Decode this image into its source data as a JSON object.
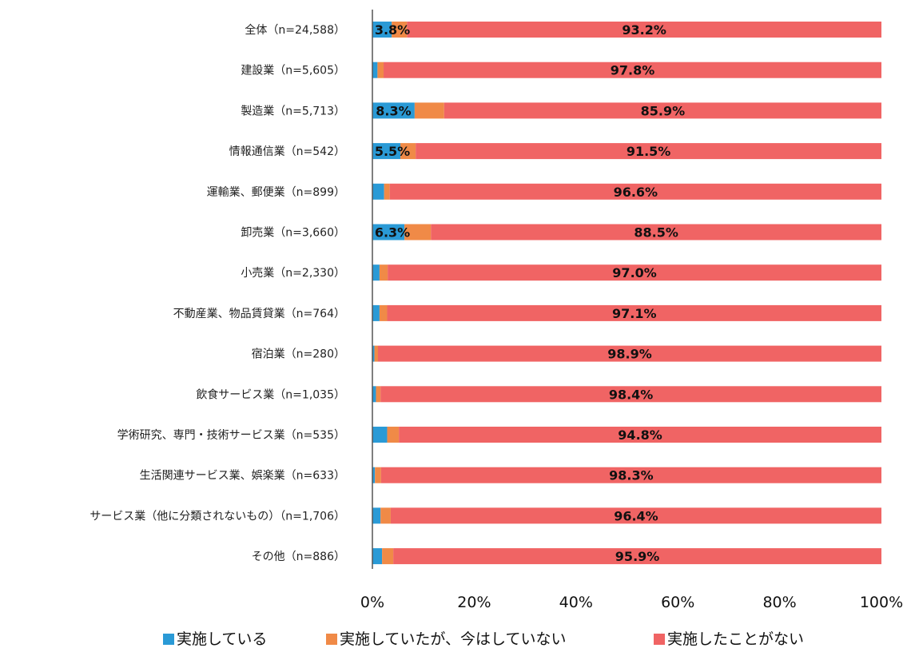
{
  "chart_data": {
    "type": "bar",
    "orientation": "horizontal",
    "stacked": "100%",
    "categories": [
      "全体（n=24,588）",
      "建設業（n=5,605）",
      "製造業（n=5,713）",
      "情報通信業（n=542）",
      "運輸業、郵便業（n=899）",
      "卸売業（n=3,660）",
      "小売業（n=2,330）",
      "不動産業、物品賃貸業（n=764）",
      "宿泊業（n=280）",
      "飲食サービス業（n=1,035）",
      "学術研究、専門・技術サービス業（n=535）",
      "生活関連サービス業、娯楽業（n=633）",
      "サービス業（他に分類されないもの）（n=1,706）",
      "その他（n=886）"
    ],
    "series": [
      {
        "name": "実施している",
        "color": "#2a9ad6",
        "values": [
          3.8,
          1.0,
          8.3,
          5.5,
          2.3,
          6.3,
          1.4,
          1.4,
          0.4,
          0.7,
          2.9,
          0.5,
          1.6,
          1.9
        ],
        "labels": [
          "3.8%",
          "",
          "8.3%",
          "5.5%",
          "",
          "6.3%",
          "",
          "",
          "",
          "",
          "",
          "",
          "",
          ""
        ]
      },
      {
        "name": "実施していたが、今はしていない",
        "color": "#f08a47",
        "values": [
          3.0,
          1.2,
          5.8,
          3.0,
          1.1,
          5.2,
          1.6,
          1.5,
          0.7,
          0.9,
          2.3,
          1.2,
          2.0,
          2.2
        ],
        "labels": [
          "",
          "",
          "",
          "",
          "",
          "",
          "",
          "",
          "",
          "",
          "",
          "",
          "",
          ""
        ]
      },
      {
        "name": "実施したことがない",
        "color": "#f06464",
        "values": [
          93.2,
          97.8,
          85.9,
          91.5,
          96.6,
          88.5,
          97.0,
          97.1,
          98.9,
          98.4,
          94.8,
          98.3,
          96.4,
          95.9
        ],
        "labels": [
          "93.2%",
          "97.8%",
          "85.9%",
          "91.5%",
          "96.6%",
          "88.5%",
          "97.0%",
          "97.1%",
          "98.9%",
          "98.4%",
          "94.8%",
          "98.3%",
          "96.4%",
          "95.9%"
        ]
      }
    ],
    "xlim": [
      0,
      100
    ],
    "xticks": [
      "0%",
      "20%",
      "40%",
      "60%",
      "80%",
      "100%"
    ],
    "grid": false,
    "legend": "bottom"
  }
}
